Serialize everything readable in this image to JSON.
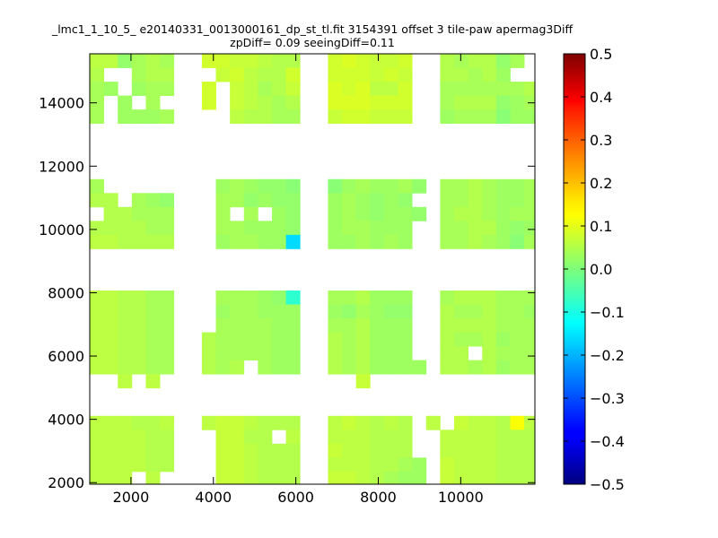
{
  "chart_data": {
    "type": "heatmap",
    "title_line1": "_lmc1_1_10_5_ e20140331_0013000161_dp_st_tl.fit 3154391 offset 3 tile-paw apermag3Diff",
    "title_line2": "zpDiff= 0.09 seeingDiff=0.11",
    "xlim": [
      1000,
      11800
    ],
    "ylim": [
      1950,
      15550
    ],
    "x_ticks": [
      2000,
      4000,
      6000,
      8000,
      10000
    ],
    "y_ticks": [
      2000,
      4000,
      6000,
      8000,
      10000,
      12000,
      14000
    ],
    "colorbar": {
      "range": [
        -0.5,
        0.5
      ],
      "ticks": [
        -0.5,
        -0.4,
        -0.3,
        -0.2,
        -0.1,
        0.0,
        0.1,
        0.2,
        0.3,
        0.4,
        0.5
      ],
      "tick_labels": [
        "−0.5",
        "−0.4",
        "−0.3",
        "−0.2",
        "−0.1",
        "0.0",
        "0.1",
        "0.2",
        "0.3",
        "0.4",
        "0.5"
      ],
      "colormap": "jet"
    },
    "cell_size": [
      340,
      440
    ],
    "x_columns": [
      1000,
      1340,
      1680,
      2020,
      2360,
      2700,
      3040,
      3380,
      3720,
      4060,
      4400,
      4740,
      5080,
      5420,
      5760,
      6100,
      6440,
      6780,
      7120,
      7460,
      7800,
      8140,
      8480,
      8820,
      9160,
      9500,
      9840,
      10180,
      10520,
      10860,
      11200,
      11540
    ],
    "y_rows": [
      15550,
      15110,
      14670,
      14230,
      13790,
      13350,
      12910,
      12470,
      12030,
      11590,
      11150,
      10710,
      10270,
      9830,
      9390,
      8950,
      8510,
      8070,
      7630,
      7190,
      6750,
      6310,
      5870,
      5430,
      4990,
      4550,
      4110,
      3670,
      3230,
      2790,
      2350
    ],
    "grid": [
      [
        0.06,
        0.06,
        0.02,
        0.04,
        0.05,
        0.04,
        null,
        null,
        0.08,
        0.08,
        0.07,
        0.07,
        0.06,
        0.05,
        0.05,
        null,
        null,
        0.08,
        0.09,
        0.08,
        0.07,
        0.07,
        0.08,
        null,
        null,
        0.05,
        0.04,
        0.05,
        0.05,
        0.02,
        0.04,
        null
      ],
      [
        0.05,
        null,
        null,
        0.04,
        0.05,
        0.05,
        null,
        null,
        null,
        0.07,
        0.08,
        0.06,
        0.05,
        0.05,
        0.08,
        null,
        null,
        0.08,
        0.08,
        0.08,
        0.07,
        0.08,
        0.07,
        null,
        null,
        0.05,
        0.05,
        0.04,
        0.05,
        0.03,
        null,
        null
      ],
      [
        0.04,
        0.03,
        null,
        0.03,
        0.04,
        0.04,
        null,
        null,
        0.08,
        null,
        0.07,
        0.06,
        0.04,
        0.05,
        0.07,
        null,
        null,
        0.09,
        0.08,
        0.09,
        0.06,
        0.06,
        0.08,
        null,
        null,
        0.04,
        0.04,
        0.04,
        0.04,
        0.04,
        0.04,
        0.05
      ],
      [
        0.04,
        null,
        0.03,
        null,
        0.04,
        null,
        null,
        null,
        0.08,
        null,
        0.07,
        0.06,
        0.05,
        0.04,
        0.05,
        null,
        null,
        0.09,
        0.09,
        0.09,
        0.08,
        0.08,
        0.08,
        null,
        null,
        0.04,
        0.05,
        0.05,
        0.05,
        0.02,
        0.03,
        0.04
      ],
      [
        0.04,
        null,
        0.03,
        0.03,
        0.03,
        0.04,
        null,
        null,
        null,
        null,
        0.06,
        0.05,
        0.05,
        0.04,
        0.04,
        null,
        null,
        0.07,
        0.08,
        0.08,
        0.07,
        0.07,
        0.07,
        null,
        null,
        0.03,
        0.04,
        0.04,
        0.04,
        0.01,
        0.03,
        0.03
      ],
      [
        null,
        null,
        null,
        null,
        null,
        null,
        null,
        null,
        null,
        null,
        null,
        null,
        null,
        null,
        null,
        null,
        null,
        null,
        null,
        null,
        null,
        null,
        null,
        null,
        null,
        null,
        null,
        null,
        null,
        null,
        null,
        null
      ],
      [
        null,
        null,
        null,
        null,
        null,
        null,
        null,
        null,
        null,
        null,
        null,
        null,
        null,
        null,
        null,
        null,
        null,
        null,
        null,
        null,
        null,
        null,
        null,
        null,
        null,
        null,
        null,
        null,
        null,
        null,
        null,
        null
      ],
      [
        null,
        null,
        null,
        null,
        null,
        null,
        null,
        null,
        null,
        null,
        null,
        null,
        null,
        null,
        null,
        null,
        null,
        null,
        null,
        null,
        null,
        null,
        null,
        null,
        null,
        null,
        null,
        null,
        null,
        null,
        null,
        null
      ],
      [
        null,
        null,
        null,
        null,
        null,
        null,
        null,
        null,
        null,
        null,
        null,
        null,
        null,
        null,
        null,
        null,
        null,
        null,
        null,
        null,
        null,
        null,
        null,
        null,
        null,
        null,
        null,
        null,
        null,
        null,
        null,
        null
      ],
      [
        0.04,
        null,
        null,
        null,
        null,
        null,
        null,
        null,
        null,
        0.03,
        0.04,
        0.03,
        0.02,
        0.02,
        0.01,
        null,
        null,
        0.01,
        0.03,
        0.04,
        0.03,
        0.03,
        0.04,
        0.02,
        null,
        0.04,
        0.04,
        0.05,
        0.04,
        0.03,
        0.03,
        0.04
      ],
      [
        0.05,
        0.05,
        null,
        0.04,
        0.03,
        0.02,
        null,
        null,
        null,
        0.04,
        0.04,
        0.02,
        0.03,
        0.02,
        0.02,
        null,
        null,
        0.03,
        0.04,
        0.03,
        0.02,
        0.03,
        0.02,
        null,
        null,
        0.04,
        0.04,
        0.05,
        0.04,
        0.03,
        0.03,
        0.04
      ],
      [
        null,
        0.05,
        0.05,
        0.04,
        0.04,
        0.04,
        null,
        null,
        null,
        0.04,
        null,
        0.04,
        null,
        0.03,
        0.02,
        null,
        null,
        0.03,
        0.04,
        0.03,
        0.02,
        0.03,
        0.03,
        0.02,
        null,
        0.04,
        0.05,
        0.05,
        0.04,
        0.03,
        0.04,
        0.04
      ],
      [
        0.05,
        0.05,
        0.05,
        0.05,
        0.04,
        0.04,
        null,
        null,
        null,
        0.04,
        0.04,
        0.03,
        0.03,
        0.03,
        0.02,
        null,
        null,
        0.03,
        0.04,
        0.04,
        0.03,
        0.03,
        0.03,
        null,
        null,
        0.04,
        0.04,
        0.05,
        0.05,
        0.03,
        0.02,
        0.03
      ],
      [
        0.06,
        0.06,
        0.05,
        0.05,
        0.05,
        0.05,
        null,
        null,
        null,
        0.03,
        0.04,
        0.04,
        0.03,
        0.03,
        -0.16,
        null,
        null,
        0.03,
        0.03,
        0.04,
        0.03,
        0.04,
        0.03,
        null,
        null,
        0.04,
        0.04,
        0.05,
        0.04,
        0.03,
        0.01,
        0.04
      ],
      [
        null,
        null,
        null,
        null,
        null,
        null,
        null,
        null,
        null,
        null,
        null,
        null,
        null,
        null,
        null,
        null,
        null,
        null,
        null,
        null,
        null,
        null,
        null,
        null,
        null,
        null,
        null,
        null,
        null,
        null,
        null,
        null
      ],
      [
        null,
        null,
        null,
        null,
        null,
        null,
        null,
        null,
        null,
        null,
        null,
        null,
        null,
        null,
        null,
        null,
        null,
        null,
        null,
        null,
        null,
        null,
        null,
        null,
        null,
        null,
        null,
        null,
        null,
        null,
        null,
        null
      ],
      [
        null,
        null,
        null,
        null,
        null,
        null,
        null,
        null,
        null,
        null,
        null,
        null,
        null,
        null,
        null,
        null,
        null,
        null,
        null,
        null,
        null,
        null,
        null,
        null,
        null,
        null,
        null,
        null,
        null,
        null,
        null,
        null
      ],
      [
        0.06,
        0.06,
        0.05,
        0.05,
        0.04,
        0.04,
        null,
        null,
        null,
        0.04,
        0.04,
        0.04,
        0.03,
        0.02,
        -0.08,
        null,
        null,
        0.04,
        0.04,
        0.05,
        0.03,
        0.03,
        0.03,
        null,
        null,
        0.04,
        0.05,
        0.05,
        0.05,
        0.04,
        0.04,
        0.04
      ],
      [
        0.06,
        0.06,
        0.05,
        0.05,
        0.04,
        0.04,
        null,
        null,
        null,
        0.03,
        0.04,
        0.04,
        0.03,
        0.03,
        0.03,
        null,
        null,
        0.03,
        0.02,
        0.04,
        0.03,
        0.02,
        0.02,
        null,
        null,
        0.05,
        0.04,
        0.04,
        0.05,
        0.04,
        0.04,
        0.03
      ],
      [
        0.06,
        0.06,
        0.05,
        0.05,
        0.04,
        0.04,
        null,
        null,
        null,
        0.04,
        0.04,
        0.04,
        0.04,
        0.03,
        0.03,
        null,
        null,
        0.04,
        0.04,
        0.05,
        0.03,
        0.03,
        0.03,
        null,
        null,
        0.05,
        0.05,
        0.05,
        0.05,
        0.04,
        0.04,
        0.04
      ],
      [
        0.06,
        0.06,
        0.05,
        0.05,
        0.04,
        0.04,
        null,
        null,
        0.05,
        0.04,
        0.04,
        0.04,
        0.04,
        0.03,
        0.03,
        null,
        null,
        0.05,
        0.04,
        0.05,
        0.03,
        0.03,
        0.03,
        null,
        null,
        0.05,
        0.04,
        0.04,
        0.05,
        0.03,
        0.04,
        0.04
      ],
      [
        0.06,
        0.06,
        0.05,
        0.05,
        0.04,
        0.04,
        null,
        null,
        0.05,
        0.04,
        0.04,
        0.04,
        0.04,
        0.03,
        0.03,
        null,
        null,
        0.05,
        0.04,
        0.05,
        0.03,
        0.03,
        0.03,
        null,
        null,
        0.05,
        0.05,
        null,
        0.05,
        0.04,
        0.04,
        0.04
      ],
      [
        0.06,
        0.06,
        0.05,
        0.05,
        0.04,
        0.04,
        null,
        null,
        0.05,
        0.04,
        0.05,
        null,
        0.04,
        0.03,
        0.03,
        null,
        null,
        0.05,
        0.04,
        0.05,
        0.03,
        0.03,
        0.03,
        0.03,
        null,
        0.05,
        0.05,
        0.04,
        0.05,
        0.03,
        0.04,
        0.04
      ],
      [
        null,
        null,
        0.06,
        null,
        0.06,
        null,
        null,
        null,
        null,
        null,
        null,
        null,
        null,
        null,
        null,
        null,
        null,
        null,
        null,
        0.07,
        null,
        null,
        null,
        null,
        null,
        null,
        null,
        null,
        null,
        null,
        null,
        null
      ],
      [
        null,
        null,
        null,
        null,
        null,
        null,
        null,
        null,
        null,
        null,
        null,
        null,
        null,
        null,
        null,
        null,
        null,
        null,
        null,
        null,
        null,
        null,
        null,
        null,
        null,
        null,
        null,
        null,
        null,
        null,
        null,
        null
      ],
      [
        null,
        null,
        null,
        null,
        null,
        null,
        null,
        null,
        null,
        null,
        null,
        null,
        null,
        null,
        null,
        null,
        null,
        null,
        null,
        null,
        null,
        null,
        null,
        null,
        null,
        null,
        null,
        null,
        null,
        null,
        null,
        null
      ],
      [
        0.06,
        0.06,
        0.06,
        0.05,
        0.05,
        0.06,
        null,
        null,
        0.06,
        0.07,
        0.07,
        0.06,
        0.05,
        0.05,
        0.05,
        null,
        null,
        0.06,
        0.07,
        0.06,
        0.05,
        0.06,
        0.05,
        null,
        0.06,
        null,
        0.07,
        0.06,
        0.06,
        0.05,
        0.12,
        0.06
      ],
      [
        0.06,
        0.06,
        0.06,
        0.06,
        0.05,
        0.05,
        null,
        null,
        null,
        0.07,
        0.07,
        0.05,
        0.05,
        null,
        0.06,
        null,
        null,
        0.06,
        0.06,
        0.06,
        0.05,
        0.05,
        0.05,
        null,
        null,
        0.06,
        0.06,
        0.06,
        0.06,
        0.05,
        0.05,
        0.05
      ],
      [
        0.06,
        0.06,
        0.06,
        0.06,
        0.05,
        0.05,
        null,
        null,
        null,
        0.07,
        0.07,
        0.06,
        0.05,
        0.05,
        0.05,
        null,
        null,
        0.07,
        0.06,
        0.06,
        0.05,
        0.05,
        0.05,
        null,
        null,
        0.06,
        0.06,
        0.06,
        0.06,
        0.05,
        0.05,
        0.05
      ],
      [
        0.06,
        0.06,
        0.06,
        0.06,
        0.05,
        0.05,
        null,
        null,
        null,
        0.07,
        0.07,
        0.06,
        0.05,
        0.05,
        0.05,
        null,
        null,
        0.06,
        0.06,
        0.06,
        0.05,
        0.05,
        0.04,
        0.03,
        null,
        0.07,
        0.06,
        0.06,
        0.06,
        0.05,
        0.05,
        0.05
      ],
      [
        0.06,
        0.06,
        0.06,
        null,
        0.06,
        null,
        null,
        null,
        null,
        0.07,
        0.07,
        0.06,
        0.05,
        0.05,
        0.05,
        null,
        null,
        0.07,
        0.07,
        0.06,
        0.05,
        0.04,
        0.03,
        0.03,
        null,
        0.07,
        0.06,
        0.06,
        0.06,
        0.05,
        0.05,
        0.05
      ]
    ]
  }
}
